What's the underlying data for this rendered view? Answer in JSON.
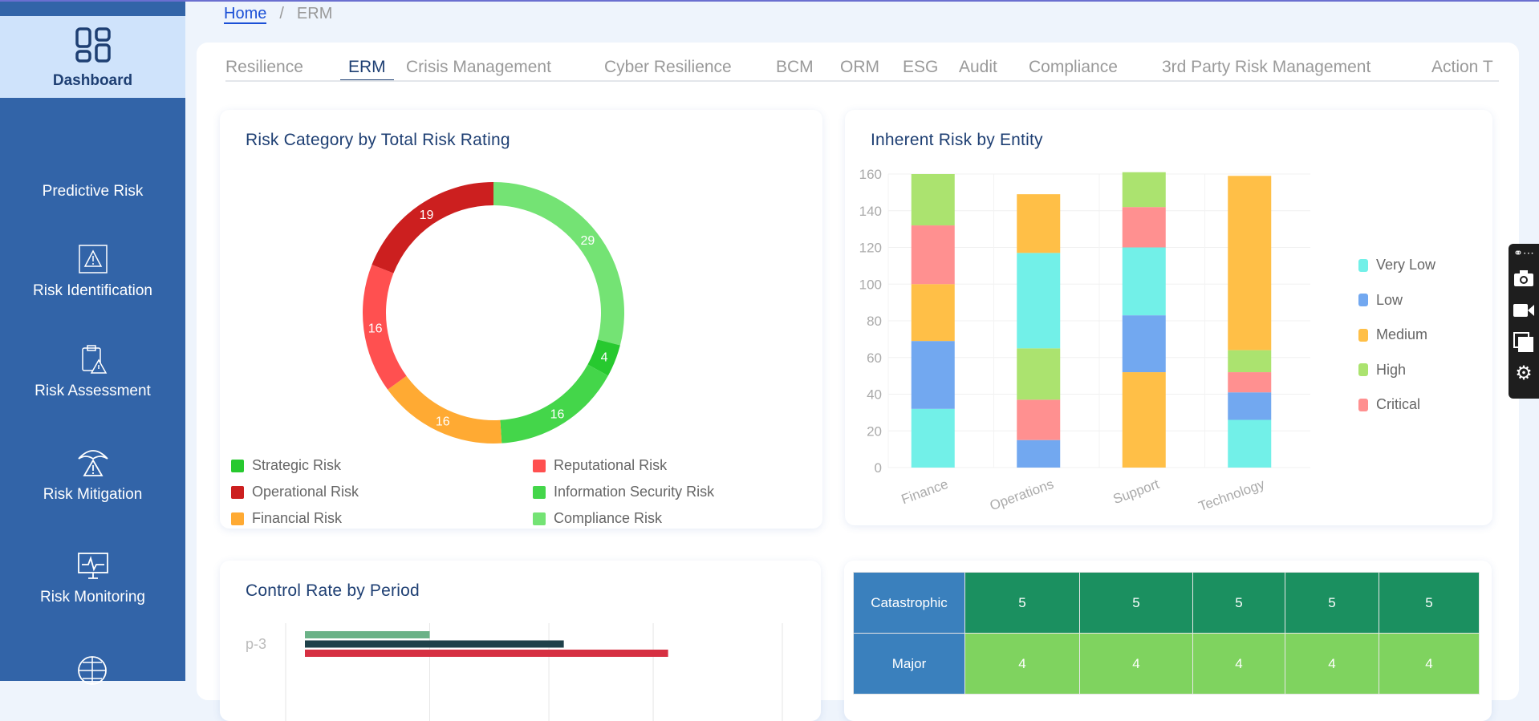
{
  "sidebar": {
    "dashboard": "Dashboard",
    "items": [
      {
        "label": "Predictive Risk",
        "icon": "predictive-risk-icon"
      },
      {
        "label": "Risk Identification",
        "icon": "warning-frame-icon"
      },
      {
        "label": "Risk Assessment",
        "icon": "clipboard-warning-icon"
      },
      {
        "label": "Risk Mitigation",
        "icon": "umbrella-warning-icon"
      },
      {
        "label": "Risk Monitoring",
        "icon": "monitor-pulse-icon"
      }
    ]
  },
  "breadcrumb": {
    "home": "Home",
    "sep": "/",
    "current": "ERM"
  },
  "tabs": [
    "Resilience",
    "ERM",
    "Crisis Management",
    "Cyber Resilience",
    "BCM",
    "ORM",
    "ESG",
    "Audit",
    "Compliance",
    "3rd Party Risk Management",
    "Action T"
  ],
  "active_tab": "ERM",
  "chart_data": [
    {
      "type": "pie",
      "title": "Risk Category by Total Risk Rating",
      "donut": true,
      "slices": [
        {
          "name": "Compliance Risk",
          "value": 29,
          "color": "#74e374"
        },
        {
          "name": "Strategic Risk",
          "value": 4,
          "color": "#27c92f"
        },
        {
          "name": "Information Security Risk",
          "value": 16,
          "color": "#44d64a"
        },
        {
          "name": "Financial Risk",
          "value": 16,
          "color": "#ffaa33"
        },
        {
          "name": "Reputational Risk",
          "value": 16,
          "color": "#ff5050"
        },
        {
          "name": "Operational Risk",
          "value": 19,
          "color": "#cc1f1f"
        }
      ],
      "legend_order": [
        "Strategic Risk",
        "Reputational Risk",
        "Operational Risk",
        "Information Security Risk",
        "Financial Risk",
        "Compliance Risk"
      ]
    },
    {
      "type": "bar",
      "stacked": true,
      "title": "Inherent Risk by Entity",
      "categories": [
        "Finance",
        "Operations",
        "Support",
        "Technology"
      ],
      "ylim": [
        0,
        160
      ],
      "yticks": [
        "0",
        "20",
        "40",
        "60",
        "80",
        "100",
        "120",
        "140",
        "160"
      ],
      "grid": true,
      "legend": "right",
      "series": [
        {
          "name": "Very Low",
          "color": "#72f0e8"
        },
        {
          "name": "Low",
          "color": "#72a8f0"
        },
        {
          "name": "Medium",
          "color": "#ffbf47"
        },
        {
          "name": "High",
          "color": "#abe36f"
        },
        {
          "name": "Critical",
          "color": "#ff9090"
        }
      ],
      "stacks": [
        [
          [
            "Very Low",
            32
          ],
          [
            "Low",
            37
          ],
          [
            "Medium",
            31
          ],
          [
            "Critical",
            32
          ],
          [
            "High",
            28
          ]
        ],
        [
          [
            "Low",
            15
          ],
          [
            "Critical",
            22
          ],
          [
            "High",
            28
          ],
          [
            "Very Low",
            52
          ],
          [
            "Medium",
            32
          ]
        ],
        [
          [
            "Medium",
            52
          ],
          [
            "Low",
            31
          ],
          [
            "Very Low",
            37
          ],
          [
            "Critical",
            22
          ],
          [
            "High",
            19
          ]
        ],
        [
          [
            "Very Low",
            26
          ],
          [
            "Low",
            15
          ],
          [
            "Critical",
            11
          ],
          [
            "High",
            12
          ],
          [
            "Medium",
            95
          ]
        ]
      ]
    },
    {
      "type": "bar",
      "orientation": "horizontal",
      "title": "Control Rate by Period",
      "categories": [
        "p-3"
      ],
      "xlim": [
        0,
        100
      ],
      "grid": true,
      "series": [
        {
          "values": [
            29
          ],
          "color": "#6bb287"
        },
        {
          "values": [
            56
          ],
          "color": "#1f414a"
        },
        {
          "values": [
            77
          ],
          "color": "#d63042"
        }
      ]
    },
    {
      "type": "heatmap",
      "rows": [
        {
          "label": "Catastrophic",
          "values": [
            5,
            5,
            5,
            5,
            5
          ],
          "color": "#1b9060"
        },
        {
          "label": "Major",
          "values": [
            4,
            4,
            4,
            4,
            4
          ],
          "color": "#7fd35f"
        }
      ],
      "header_color": "#3a80bd"
    }
  ],
  "toolbar": [
    "link-icon",
    "camera-icon",
    "video-icon",
    "copy-icon",
    "gear-icon"
  ]
}
